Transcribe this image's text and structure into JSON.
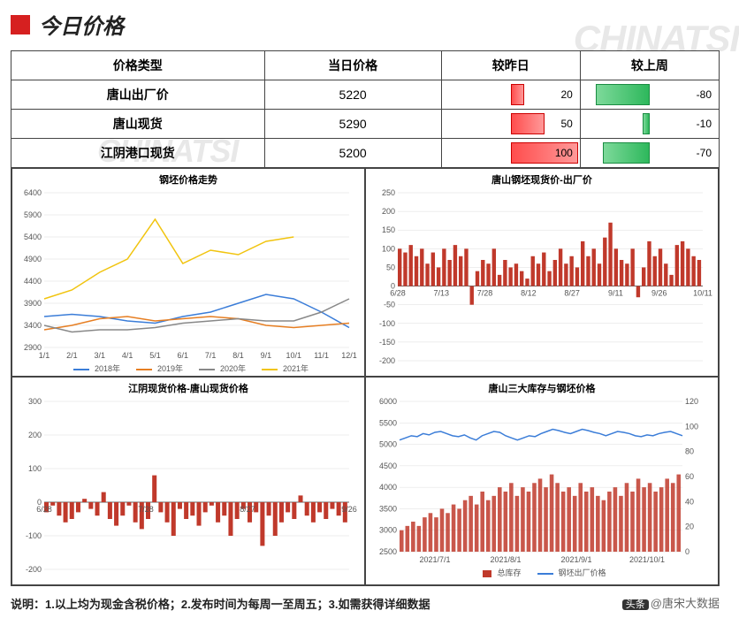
{
  "title": "今日价格",
  "watermark": "CHINATSI",
  "table": {
    "headers": [
      "价格类型",
      "当日价格",
      "较昨日",
      "较上周"
    ],
    "rows": [
      {
        "label": "唐山出厂价",
        "price": 5220,
        "vs_day": 20,
        "vs_week": -80
      },
      {
        "label": "唐山现货",
        "price": 5290,
        "vs_day": 50,
        "vs_week": -10
      },
      {
        "label": "江阴港口现货",
        "price": 5200,
        "vs_day": 100,
        "vs_week": -70
      }
    ],
    "bar_max": 100,
    "red_color": "#ff4d4d",
    "green_color": "#2eb85c"
  },
  "chart1": {
    "title": "钢坯价格走势",
    "ylim": [
      2900,
      6400
    ],
    "ytick_step": 500,
    "x_labels": [
      "1/1",
      "2/1",
      "3/1",
      "4/1",
      "5/1",
      "6/1",
      "7/1",
      "8/1",
      "9/1",
      "10/1",
      "11/1",
      "12/1"
    ],
    "series": [
      {
        "name": "2018年",
        "color": "#3b7dd8",
        "data": [
          3600,
          3650,
          3600,
          3500,
          3450,
          3600,
          3700,
          3900,
          4100,
          4000,
          3700,
          3350
        ]
      },
      {
        "name": "2019年",
        "color": "#e67e22",
        "data": [
          3300,
          3400,
          3550,
          3600,
          3500,
          3550,
          3600,
          3550,
          3400,
          3350,
          3400,
          3450
        ]
      },
      {
        "name": "2020年",
        "color": "#888888",
        "data": [
          3400,
          3250,
          3300,
          3300,
          3350,
          3450,
          3500,
          3550,
          3500,
          3500,
          3700,
          4000
        ]
      },
      {
        "name": "2021年",
        "color": "#f1c40f",
        "data": [
          4000,
          4200,
          4600,
          4900,
          5800,
          4800,
          5100,
          5000,
          5300,
          5400,
          null,
          null
        ]
      }
    ]
  },
  "chart2": {
    "title": "唐山钢坯现货价-出厂价",
    "ylim": [
      -200,
      250
    ],
    "ytick_step": 50,
    "x_labels": [
      "6/28",
      "7/13",
      "7/28",
      "8/12",
      "8/27",
      "9/11",
      "9/26",
      "10/11"
    ],
    "color": "#c0392b",
    "data": [
      100,
      90,
      110,
      80,
      100,
      60,
      90,
      50,
      100,
      70,
      110,
      80,
      100,
      -50,
      40,
      70,
      60,
      100,
      30,
      70,
      50,
      60,
      40,
      20,
      80,
      60,
      90,
      40,
      70,
      100,
      60,
      80,
      50,
      120,
      80,
      100,
      60,
      130,
      170,
      100,
      70,
      60,
      100,
      -30,
      50,
      120,
      80,
      100,
      60,
      30,
      110,
      120,
      100,
      80,
      70
    ]
  },
  "chart3": {
    "title": "江阴现货价格-唐山现货价格",
    "ylim": [
      -200,
      300
    ],
    "ytick_step": 100,
    "x_labels": [
      "6/28",
      "7/28",
      "8/27",
      "9/26"
    ],
    "color": "#c0392b",
    "data": [
      -30,
      -10,
      -40,
      -60,
      -50,
      -30,
      10,
      -20,
      -40,
      30,
      -50,
      -70,
      -40,
      -10,
      -60,
      -80,
      -50,
      80,
      -30,
      -60,
      -100,
      -20,
      -50,
      -40,
      -70,
      -30,
      -10,
      -60,
      -40,
      -100,
      -50,
      -20,
      -60,
      -30,
      -130,
      -40,
      -100,
      -60,
      -30,
      -50,
      20,
      -40,
      -60,
      -30,
      -50,
      -20,
      -40,
      -60
    ]
  },
  "chart4": {
    "title": "唐山三大库存与钢坯价格",
    "y1lim": [
      2500,
      6000
    ],
    "y1step": 500,
    "y2lim": [
      0,
      120
    ],
    "y2step": 20,
    "x_labels": [
      "2021/7/1",
      "2021/8/1",
      "2021/9/1",
      "2021/10/1"
    ],
    "bar_color": "#c0392b",
    "line_color": "#3b7dd8",
    "legend": [
      "总库存",
      "钢坯出厂价格"
    ],
    "bars": [
      3000,
      3100,
      3200,
      3100,
      3300,
      3400,
      3300,
      3500,
      3400,
      3600,
      3500,
      3700,
      3800,
      3600,
      3900,
      3700,
      3800,
      4000,
      3900,
      4100,
      3800,
      4000,
      3900,
      4100,
      4200,
      4000,
      4300,
      4100,
      3900,
      4000,
      3800,
      4100,
      3900,
      4000,
      3800,
      3700,
      3900,
      4000,
      3800,
      4100,
      3900,
      4200,
      4000,
      4100,
      3900,
      4000,
      4200,
      4100,
      4300
    ],
    "line": [
      5100,
      5150,
      5200,
      5180,
      5250,
      5220,
      5280,
      5300,
      5250,
      5200,
      5180,
      5220,
      5150,
      5100,
      5200,
      5250,
      5300,
      5280,
      5200,
      5150,
      5100,
      5150,
      5200,
      5180,
      5250,
      5300,
      5350,
      5320,
      5280,
      5250,
      5300,
      5350,
      5320,
      5280,
      5250,
      5200,
      5250,
      5300,
      5280,
      5250,
      5200,
      5180,
      5220,
      5200,
      5250,
      5280,
      5300,
      5250,
      5200
    ]
  },
  "footer": "说明：1.以上均为现金含税价格；2.发布时间为每周一至周五；3.如需获得详细数据",
  "attribution_prefix": "头条",
  "attribution_text": "@唐宋大数据"
}
